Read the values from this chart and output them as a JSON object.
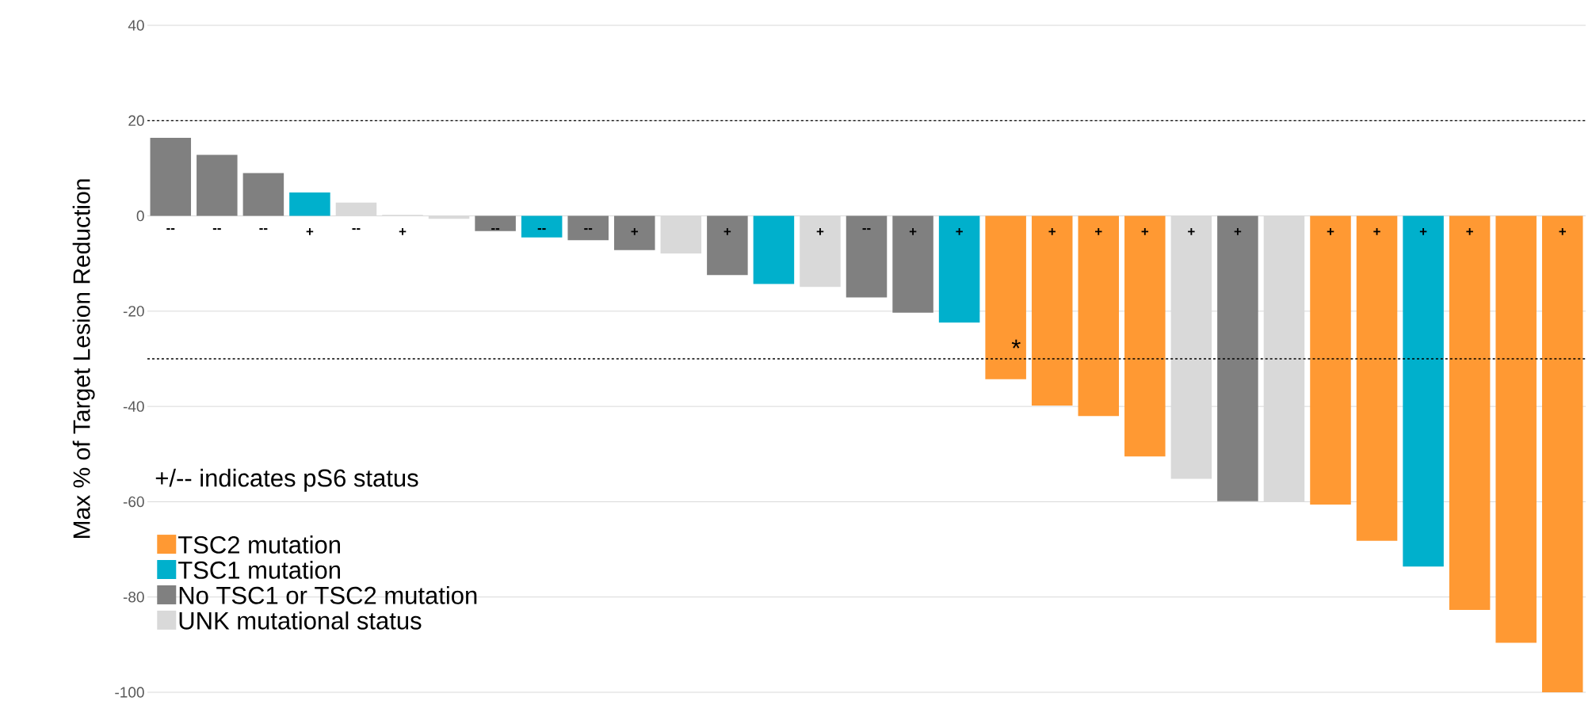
{
  "chart_data": {
    "type": "bar",
    "ylabel": "Max % of Target Lesion Reduction",
    "categories": [
      null,
      null,
      null,
      null,
      null,
      null,
      null,
      null,
      null,
      null,
      null,
      null,
      null,
      null,
      null,
      null,
      null,
      null,
      null,
      null,
      null,
      null,
      null,
      null,
      null,
      null,
      null,
      null,
      null,
      null,
      null
    ],
    "series": [
      {
        "name": "TSC2 mutation",
        "color": "#ff9933",
        "values": [
          null,
          null,
          null,
          null,
          null,
          null,
          null,
          null,
          null,
          null,
          null,
          null,
          null,
          null,
          null,
          null,
          null,
          null,
          -34.3,
          -39.8,
          -42,
          -50.5,
          null,
          null,
          null,
          -60.6,
          -68.2,
          null,
          -82.7,
          -89.6,
          -100
        ],
        "value_labels": [
          null,
          null,
          null,
          null,
          null,
          null,
          null,
          null,
          null,
          null,
          null,
          null,
          null,
          null,
          null,
          null,
          null,
          null,
          null,
          "+",
          "+",
          "+",
          null,
          null,
          null,
          "+",
          "+",
          null,
          "+",
          null,
          "+"
        ]
      },
      {
        "name": "TSC1 mutation",
        "color": "#00b0cc",
        "values": [
          null,
          null,
          null,
          4.9,
          null,
          null,
          null,
          null,
          -4.5,
          null,
          null,
          null,
          null,
          -14.3,
          null,
          null,
          null,
          -22.4,
          null,
          null,
          null,
          null,
          null,
          null,
          null,
          null,
          null,
          -73.6,
          null,
          null,
          null
        ],
        "value_labels": [
          null,
          null,
          null,
          "+",
          null,
          null,
          null,
          null,
          "--",
          null,
          null,
          null,
          null,
          null,
          null,
          null,
          null,
          "+",
          null,
          null,
          null,
          null,
          null,
          null,
          null,
          null,
          null,
          "+",
          null,
          null,
          null
        ]
      },
      {
        "name": "No TSC1 or TSC2 mutation",
        "color": "#808080",
        "values": [
          16.4,
          12.8,
          9,
          null,
          null,
          null,
          null,
          -3.2,
          null,
          -5.1,
          -7.2,
          null,
          -12.4,
          null,
          null,
          -17.1,
          -20.3,
          null,
          null,
          null,
          null,
          null,
          null,
          -59.9,
          null,
          null,
          null,
          null,
          null,
          null,
          null
        ],
        "value_labels": [
          "--",
          "--",
          "--",
          null,
          null,
          null,
          null,
          "--",
          null,
          "--",
          "+",
          null,
          "+",
          null,
          null,
          "--",
          "+",
          null,
          null,
          null,
          null,
          null,
          null,
          "+",
          null,
          null,
          null,
          null,
          null,
          null,
          null
        ]
      },
      {
        "name": "UNK mutational status",
        "color": "#d9d9d9",
        "values": [
          null,
          null,
          null,
          null,
          2.8,
          0.2,
          -0.6,
          null,
          null,
          null,
          null,
          -7.9,
          null,
          null,
          -14.9,
          null,
          null,
          null,
          null,
          null,
          null,
          null,
          -55.2,
          null,
          -60.1,
          null,
          null,
          null,
          null,
          null,
          null
        ],
        "value_labels": [
          null,
          null,
          null,
          null,
          "--",
          "+",
          null,
          null,
          null,
          null,
          null,
          null,
          null,
          null,
          "+",
          null,
          null,
          null,
          null,
          null,
          null,
          null,
          "+",
          null,
          null,
          null,
          null,
          null,
          null,
          null,
          null
        ]
      }
    ],
    "ylim": [
      -100,
      40
    ],
    "yticks": [
      -100,
      -80,
      -60,
      -40,
      -20,
      0,
      20,
      40
    ],
    "grid": "y",
    "legend": "bottom left",
    "ref_lines": [
      {
        "axis": "y",
        "value": 20,
        "line_style": "dashed",
        "color": "#000000"
      },
      {
        "axis": "y",
        "value": -30,
        "line_style": "dashed",
        "color": "#000000"
      }
    ],
    "annotations": [
      "+/-- indicates pS6 status",
      "*"
    ]
  }
}
